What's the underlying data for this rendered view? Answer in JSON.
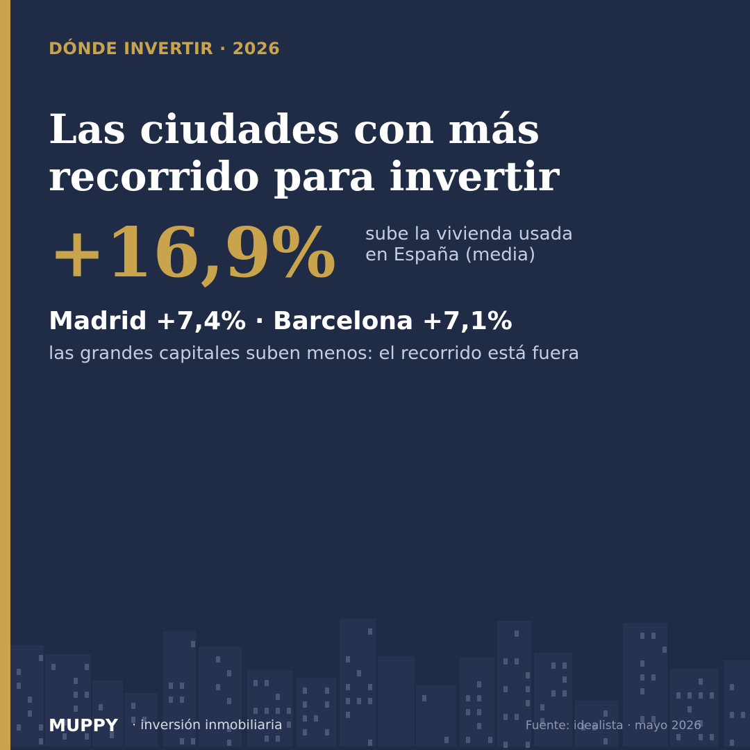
{
  "header": {
    "kicker": "DÓNDE INVERTIR · 2026",
    "title_lines": [
      "Las ciudades con más",
      "recorrido para invertir"
    ]
  },
  "stat": {
    "value": "+16,9%",
    "caption_lines": [
      "sube la vivienda usada",
      "en España (media)"
    ]
  },
  "highlight": {
    "text": "Madrid +7,4% · Barcelona +7,1%",
    "note": "las grandes capitales suben menos: el recorrido está fuera"
  },
  "footer": {
    "brand": "MUPPY",
    "tagline": "· inversión inmobiliaria",
    "source": "Fuente: idealista · mayo 2026"
  }
}
